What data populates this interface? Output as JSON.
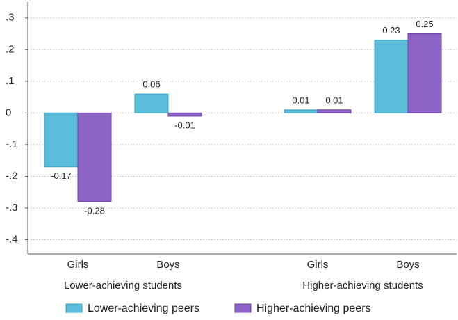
{
  "chart_data": {
    "type": "bar",
    "categories": [
      "Girls",
      "Boys",
      "Girls",
      "Boys"
    ],
    "groups": [
      "Lower-achieving students",
      "Higher-achieving students"
    ],
    "series": [
      {
        "name": "Lower-achieving peers",
        "color": "#5bbcd9",
        "values": [
          -0.17,
          0.06,
          0.01,
          0.23
        ]
      },
      {
        "name": "Higher-achieving peers",
        "color": "#8a63c4",
        "values": [
          -0.28,
          -0.01,
          0.01,
          0.25
        ]
      }
    ],
    "ylim": [
      -0.445,
      0.35
    ],
    "yticks": [
      {
        "value": 0.3,
        "label": ".3"
      },
      {
        "value": 0.2,
        "label": ".2"
      },
      {
        "value": 0.1,
        "label": ".1"
      },
      0,
      {
        "value": -0.1,
        "label": "-.1"
      },
      {
        "value": -0.2,
        "label": "-.2"
      },
      {
        "value": -0.3,
        "label": "-.3"
      },
      {
        "value": -0.4,
        "label": "-.4"
      }
    ],
    "grid": true,
    "legend": "bottom"
  }
}
